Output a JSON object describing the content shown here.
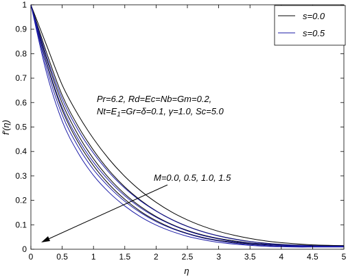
{
  "chart_data": {
    "type": "line",
    "title": "",
    "xlabel": "η",
    "ylabel": "f′(η)",
    "xlim": [
      0,
      5
    ],
    "ylim": [
      0,
      1
    ],
    "xticks": [
      "0",
      "0.5",
      "1",
      "1.5",
      "2",
      "2.5",
      "3",
      "3.5",
      "4",
      "4.5",
      "5"
    ],
    "yticks": [
      "0",
      "0.1",
      "0.2",
      "0.3",
      "0.4",
      "0.5",
      "0.6",
      "0.7",
      "0.8",
      "0.9",
      "1"
    ],
    "grid": false,
    "legend_position": "top-right",
    "legend": [
      {
        "label": "s=0.0",
        "color": "#000000"
      },
      {
        "label": "s=0.5",
        "color": "#1a1aa6"
      }
    ],
    "annotations": {
      "params_line1": "Pr=6.2, Rd=Ec=Nb=Gm=0.2,",
      "params_line2_a": "Nt=E",
      "params_line2_sub": "1",
      "params_line2_b": "=Gr=δ=0.1, γ=1.0, Sc=5.0",
      "arrow_label": "M=0.0, 0.5, 1.0, 1.5"
    },
    "x": [
      0,
      0.25,
      0.5,
      0.75,
      1,
      1.25,
      1.5,
      1.75,
      2,
      2.25,
      2.5,
      2.75,
      3,
      3.25,
      3.5,
      3.75,
      4,
      4.25,
      4.5,
      4.75,
      5
    ],
    "series": [
      {
        "group": "s=0.0",
        "color": "#000000",
        "values": [
          1.0,
          0.835,
          0.672,
          0.552,
          0.452,
          0.368,
          0.298,
          0.24,
          0.192,
          0.152,
          0.12,
          0.094,
          0.073,
          0.057,
          0.044,
          0.034,
          0.027,
          0.022,
          0.018,
          0.016,
          0.015
        ]
      },
      {
        "group": "s=0.0",
        "color": "#000000",
        "values": [
          1.0,
          0.805,
          0.63,
          0.505,
          0.405,
          0.322,
          0.255,
          0.201,
          0.157,
          0.122,
          0.094,
          0.072,
          0.055,
          0.042,
          0.032,
          0.025,
          0.02,
          0.017,
          0.015,
          0.014,
          0.013
        ]
      },
      {
        "group": "s=0.0",
        "color": "#000000",
        "values": [
          1.0,
          0.78,
          0.598,
          0.47,
          0.37,
          0.29,
          0.226,
          0.175,
          0.134,
          0.102,
          0.077,
          0.058,
          0.044,
          0.034,
          0.026,
          0.021,
          0.017,
          0.015,
          0.013,
          0.012,
          0.012
        ]
      },
      {
        "group": "s=0.0",
        "color": "#000000",
        "values": [
          1.0,
          0.76,
          0.57,
          0.44,
          0.342,
          0.265,
          0.204,
          0.155,
          0.117,
          0.087,
          0.065,
          0.048,
          0.036,
          0.028,
          0.022,
          0.018,
          0.015,
          0.013,
          0.012,
          0.011,
          0.011
        ]
      },
      {
        "group": "s=0.5",
        "color": "#1a1aa6",
        "values": [
          1.0,
          0.79,
          0.615,
          0.49,
          0.393,
          0.314,
          0.25,
          0.198,
          0.156,
          0.121,
          0.093,
          0.071,
          0.054,
          0.041,
          0.031,
          0.024,
          0.019,
          0.016,
          0.014,
          0.013,
          0.013
        ]
      },
      {
        "group": "s=0.5",
        "color": "#1a1aa6",
        "values": [
          1.0,
          0.765,
          0.58,
          0.453,
          0.356,
          0.28,
          0.219,
          0.17,
          0.131,
          0.1,
          0.075,
          0.056,
          0.042,
          0.031,
          0.024,
          0.019,
          0.015,
          0.013,
          0.012,
          0.012,
          0.011
        ]
      },
      {
        "group": "s=0.5",
        "color": "#1a1aa6",
        "values": [
          1.0,
          0.742,
          0.55,
          0.422,
          0.326,
          0.254,
          0.196,
          0.15,
          0.113,
          0.085,
          0.063,
          0.046,
          0.034,
          0.025,
          0.019,
          0.015,
          0.012,
          0.011,
          0.01,
          0.01,
          0.01
        ]
      },
      {
        "group": "s=0.5",
        "color": "#1a1aa6",
        "values": [
          1.0,
          0.722,
          0.524,
          0.396,
          0.302,
          0.232,
          0.177,
          0.133,
          0.099,
          0.073,
          0.053,
          0.039,
          0.028,
          0.021,
          0.016,
          0.012,
          0.01,
          0.009,
          0.009,
          0.009,
          0.009
        ]
      }
    ]
  }
}
